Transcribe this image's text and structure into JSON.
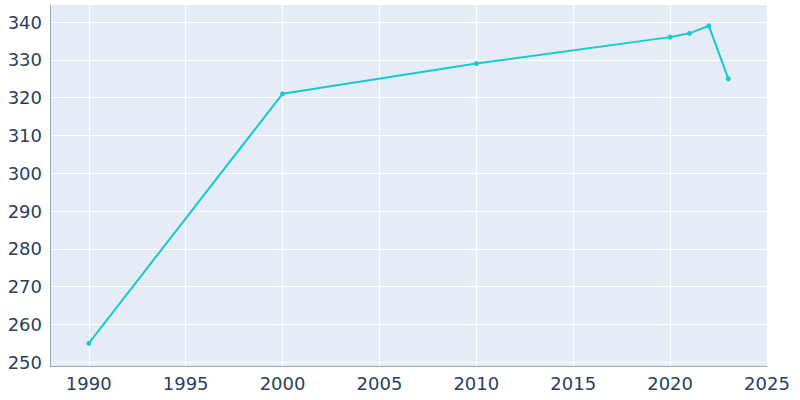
{
  "chart_data": {
    "type": "line",
    "x": [
      1990,
      2000,
      2010,
      2020,
      2021,
      2022,
      2023
    ],
    "values": [
      255,
      321,
      329,
      336,
      337,
      339,
      325
    ],
    "color": "#17c9d1",
    "marker": "circle",
    "xlim": [
      1988,
      2025
    ],
    "xticks": [
      1990,
      1995,
      2000,
      2005,
      2010,
      2015,
      2020,
      2025
    ],
    "ylim": [
      249,
      344.5
    ],
    "yticks": [
      250,
      260,
      270,
      280,
      290,
      300,
      310,
      320,
      330,
      340
    ],
    "grid": true
  }
}
